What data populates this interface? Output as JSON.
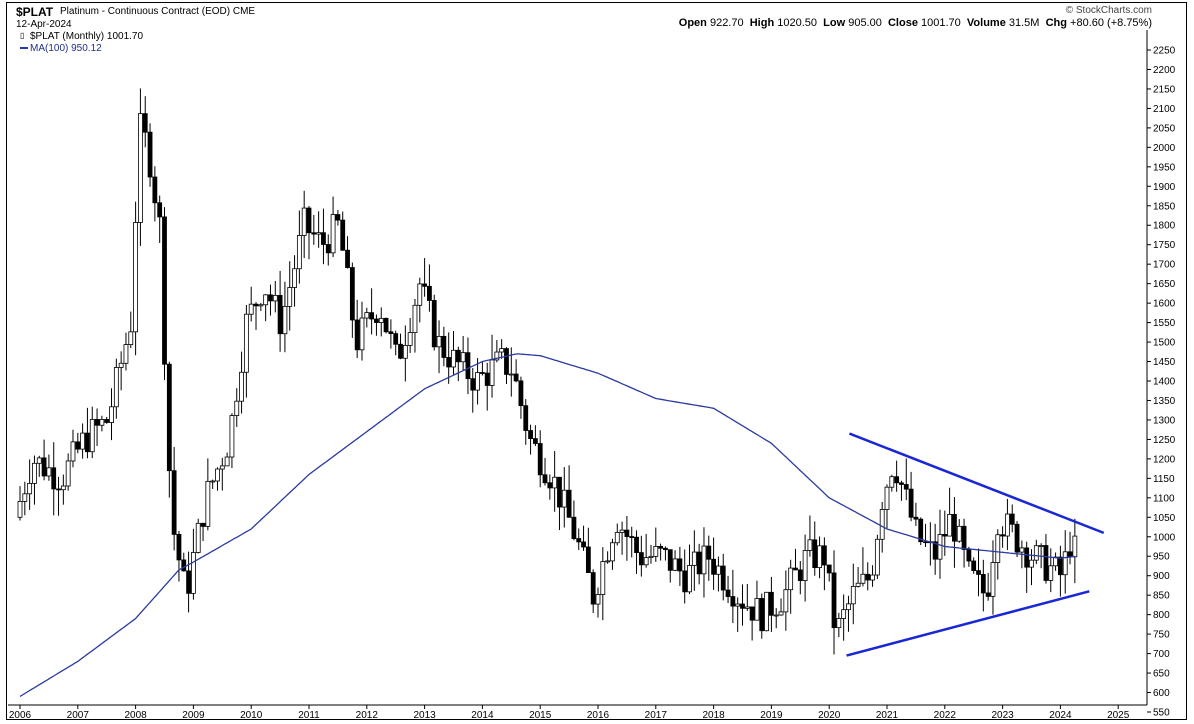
{
  "header": {
    "symbol": "$PLAT",
    "name": "Platinum - Continuous Contract (EOD)",
    "exchange": "CME",
    "date": "12-Apr-2024",
    "source": "© StockCharts.com",
    "legend_price": "$PLAT (Monthly) 1001.70",
    "legend_ma": "MA(100) 950.12",
    "stats": {
      "open_label": "Open",
      "open": "922.70",
      "high_label": "High",
      "high": "1020.50",
      "low_label": "Low",
      "low": "905.00",
      "close_label": "Close",
      "close": "1001.70",
      "volume_label": "Volume",
      "volume": "31.5M",
      "chg_label": "Chg",
      "chg": "+80.60 (+8.75%)"
    }
  },
  "chart_data": {
    "type": "candlestick",
    "interval": "Monthly",
    "ylim": [
      550,
      2300
    ],
    "xlim": [
      2006.0,
      2025.5
    ],
    "yticks": [
      550,
      600,
      650,
      700,
      750,
      800,
      850,
      900,
      950,
      1000,
      1050,
      1100,
      1150,
      1200,
      1250,
      1300,
      1350,
      1400,
      1450,
      1500,
      1550,
      1600,
      1650,
      1700,
      1750,
      1800,
      1850,
      1900,
      1950,
      2000,
      2050,
      2100,
      2150,
      2200,
      2250
    ],
    "ytick_labels": [
      "550",
      "600",
      "650",
      "700",
      "750",
      "800",
      "850",
      "900",
      "950",
      "1000",
      "1050",
      "1100",
      "1150",
      "1200",
      "1250",
      "1300",
      "1350",
      "1400",
      "1450",
      "1500",
      "1550",
      "1600",
      "1650",
      "1700",
      "1750",
      "1800",
      "1850",
      "1900",
      "1950",
      "2000",
      "2050",
      "2100",
      "2150",
      "2200",
      "2250"
    ],
    "xticks": [
      2006,
      2007,
      2008,
      2009,
      2010,
      2011,
      2012,
      2013,
      2014,
      2015,
      2016,
      2017,
      2018,
      2019,
      2020,
      2021,
      2022,
      2023,
      2024,
      2025
    ],
    "xtick_labels": [
      "2006",
      "2007",
      "2008",
      "2009",
      "2010",
      "2011",
      "2012",
      "2013",
      "2014",
      "2015",
      "2016",
      "2017",
      "2018",
      "2019",
      "2020",
      "2021",
      "2022",
      "2023",
      "2024",
      "2025"
    ],
    "price_anchors": {
      "t": [
        2006.0,
        2006.3,
        2006.8,
        2007.2,
        2007.6,
        2008.0,
        2008.15,
        2008.3,
        2008.5,
        2008.7,
        2008.95,
        2009.3,
        2009.7,
        2010.0,
        2010.3,
        2010.6,
        2011.0,
        2011.3,
        2011.6,
        2011.9,
        2012.3,
        2012.6,
        2013.0,
        2013.3,
        2013.6,
        2014.0,
        2014.4,
        2014.6,
        2014.9,
        2015.3,
        2015.7,
        2016.0,
        2016.4,
        2016.8,
        2017.2,
        2017.6,
        2018.0,
        2018.5,
        2018.9,
        2019.3,
        2019.7,
        2020.0,
        2020.2,
        2020.5,
        2020.8,
        2021.0,
        2021.2,
        2021.6,
        2021.9,
        2022.2,
        2022.5,
        2022.8,
        2023.0,
        2023.3,
        2023.6,
        2023.9,
        2024.1,
        2024.28
      ],
      "price": [
        1050,
        1200,
        1150,
        1250,
        1300,
        1550,
        2050,
        2000,
        1800,
        1050,
        850,
        1100,
        1250,
        1550,
        1650,
        1550,
        1800,
        1750,
        1800,
        1500,
        1600,
        1450,
        1650,
        1500,
        1450,
        1400,
        1450,
        1430,
        1250,
        1150,
        1000,
        850,
        1050,
        950,
        950,
        900,
        950,
        850,
        800,
        850,
        950,
        950,
        750,
        850,
        900,
        1100,
        1200,
        1000,
        950,
        1050,
        900,
        850,
        1050,
        1000,
        950,
        920,
        900,
        1001.7
      ]
    },
    "ma_anchors": {
      "t": [
        2006.0,
        2007.0,
        2008.0,
        2008.75,
        2009.0,
        2010.0,
        2011.0,
        2012.0,
        2013.0,
        2014.0,
        2014.6,
        2015.0,
        2016.0,
        2017.0,
        2018.0,
        2019.0,
        2020.0,
        2021.0,
        2022.0,
        2023.0,
        2024.0,
        2024.28
      ],
      "ma": [
        590,
        680,
        790,
        915,
        935,
        1020,
        1160,
        1270,
        1380,
        1450,
        1470,
        1465,
        1420,
        1355,
        1330,
        1240,
        1100,
        1020,
        975,
        960,
        945,
        950.12
      ]
    },
    "trendlines": [
      {
        "name": "upper",
        "t1": 2020.35,
        "p1": 1265,
        "t2": 2024.75,
        "p2": 1010
      },
      {
        "name": "lower",
        "t1": 2020.3,
        "p1": 695,
        "t2": 2024.5,
        "p2": 860
      }
    ],
    "colors": {
      "candle": "#000000",
      "ma": "#2a3aa0",
      "trendline": "#1a27d4"
    }
  }
}
